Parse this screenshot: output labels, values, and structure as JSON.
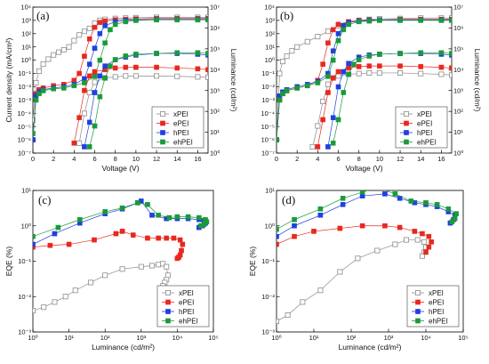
{
  "colors": {
    "xPEI": "#8c8c8c",
    "ePEI": "#e8281e",
    "hPEI": "#1f3fe0",
    "ehPEI": "#1a9a3a"
  },
  "legend": [
    "xPEI",
    "ePEI",
    "hPEI",
    "ehPEI"
  ],
  "chart_data": [
    {
      "panel": "(a)",
      "type": "line",
      "log_y": true,
      "log_y2": true,
      "xlabel": "Voltage (V)",
      "ylabel": "Current density (mA/cm²)",
      "y2label": "Luminance (cd/m²)",
      "xlim": [
        0,
        17
      ],
      "ylim": [
        1e-07,
        10000.0
      ],
      "y2lim": [
        1,
        10000000.0
      ],
      "xticks": [
        0,
        2,
        4,
        6,
        8,
        10,
        12,
        14,
        16
      ],
      "legend_position": "bottom-right",
      "current": [
        {
          "name": "xPEI",
          "x": [
            0,
            0.3,
            0.6,
            1,
            1.5,
            2,
            2.5,
            3,
            3.5,
            4,
            4.5,
            5,
            5.5,
            6,
            6.5,
            7,
            8,
            9,
            10,
            12,
            14,
            16,
            17
          ],
          "y": [
            3e-05,
            0.02,
            0.15,
            0.5,
            1.2,
            2.5,
            4,
            6,
            10,
            30,
            80,
            150,
            250,
            600,
            1000,
            1200,
            1400,
            1500,
            1600,
            1700,
            1700,
            1700,
            1700
          ]
        },
        {
          "name": "ePEI",
          "x": [
            0,
            0.3,
            0.6,
            1,
            2,
            3,
            4,
            4.5,
            5,
            5.5,
            6,
            6.5,
            7,
            8,
            9,
            10,
            12,
            14,
            16,
            17
          ],
          "y": [
            1e-06,
            0.003,
            0.006,
            0.008,
            0.012,
            0.015,
            0.03,
            0.1,
            2,
            40,
            300,
            700,
            900,
            1100,
            1200,
            1300,
            1400,
            1400,
            1400,
            1400
          ]
        },
        {
          "name": "hPEI",
          "x": [
            0,
            0.3,
            0.6,
            1,
            2,
            3,
            4,
            5,
            5.5,
            6,
            6.5,
            7,
            8,
            9,
            10,
            12,
            14,
            16,
            17
          ],
          "y": [
            1e-06,
            0.002,
            0.004,
            0.006,
            0.008,
            0.01,
            0.015,
            0.04,
            0.5,
            8,
            100,
            400,
            800,
            1000,
            1100,
            1200,
            1200,
            1200,
            1200
          ]
        },
        {
          "name": "ehPEI",
          "x": [
            0,
            0.3,
            0.6,
            1,
            2,
            3,
            4,
            5,
            6,
            6.5,
            7,
            7.5,
            8,
            9,
            10,
            12,
            14,
            16,
            17
          ],
          "y": [
            3e-06,
            0.001,
            0.003,
            0.005,
            0.007,
            0.008,
            0.012,
            0.02,
            0.06,
            1,
            20,
            200,
            500,
            800,
            1000,
            1100,
            1100,
            1100,
            1100
          ]
        }
      ],
      "luminance": [
        {
          "name": "xPEI",
          "x": [
            4.5,
            5,
            5.5,
            6,
            7,
            8,
            9,
            10,
            12,
            14,
            16,
            17
          ],
          "y": [
            3,
            80,
            800,
            2500,
            4000,
            4500,
            5000,
            5000,
            5000,
            4800,
            4500,
            4300
          ]
        },
        {
          "name": "ePEI",
          "x": [
            4,
            4.5,
            5,
            5.5,
            6,
            7,
            8,
            9,
            10,
            12,
            14,
            16,
            17
          ],
          "y": [
            3,
            50,
            1000,
            5000,
            8000,
            10000,
            12000,
            13000,
            13000,
            13000,
            12000,
            11000,
            10000
          ]
        },
        {
          "name": "hPEI",
          "x": [
            5,
            5.5,
            6,
            6.5,
            7,
            8,
            9,
            10,
            12,
            14,
            16,
            17
          ],
          "y": [
            2,
            30,
            800,
            5000,
            15000,
            30000,
            40000,
            50000,
            60000,
            60000,
            55000,
            50000
          ]
        },
        {
          "name": "ehPEI",
          "x": [
            5.5,
            6,
            6.5,
            7,
            7.5,
            8,
            9,
            10,
            12,
            14,
            16,
            17
          ],
          "y": [
            2,
            20,
            500,
            4000,
            15000,
            30000,
            45000,
            55000,
            60000,
            65000,
            65000,
            60000
          ]
        }
      ]
    },
    {
      "panel": "(b)",
      "type": "line",
      "log_y": true,
      "log_y2": true,
      "xlabel": "Voltage (V)",
      "ylabel": "",
      "y2label": "Luminance (cd/m²)",
      "xlim": [
        0,
        17
      ],
      "ylim": [
        1e-07,
        10000.0
      ],
      "y2lim": [
        1,
        10000000.0
      ],
      "xticks": [
        0,
        2,
        4,
        6,
        8,
        10,
        12,
        14,
        16
      ],
      "legend_position": "bottom-right",
      "current": [
        {
          "name": "xPEI",
          "x": [
            0,
            0.3,
            0.6,
            1,
            1.5,
            2,
            3,
            4,
            5,
            6,
            7,
            8,
            9,
            10,
            12,
            14,
            16,
            17
          ],
          "y": [
            1e-06,
            0.1,
            0.8,
            2,
            5,
            10,
            25,
            60,
            150,
            400,
            700,
            1000,
            1200,
            1300,
            1400,
            1500,
            1500,
            1500
          ]
        },
        {
          "name": "ePEI",
          "x": [
            0,
            0.3,
            0.6,
            1,
            2,
            3,
            4,
            4.5,
            5,
            5.5,
            6,
            7,
            8,
            9,
            10,
            12,
            14,
            16,
            17
          ],
          "y": [
            1e-06,
            0.001,
            0.003,
            0.005,
            0.008,
            0.012,
            0.03,
            0.5,
            20,
            200,
            500,
            800,
            1000,
            1100,
            1100,
            1200,
            1200,
            1200,
            1200
          ]
        },
        {
          "name": "hPEI",
          "x": [
            0,
            0.3,
            0.6,
            1,
            2,
            3,
            4,
            5,
            5.5,
            6,
            6.5,
            7,
            8,
            9,
            10,
            12,
            14,
            16,
            17
          ],
          "y": [
            1e-06,
            0.002,
            0.004,
            0.006,
            0.01,
            0.015,
            0.025,
            0.1,
            5,
            100,
            400,
            700,
            900,
            1000,
            1100,
            1100,
            1100,
            1100,
            1100
          ]
        },
        {
          "name": "ehPEI",
          "x": [
            0,
            0.3,
            0.6,
            1,
            2,
            3,
            4,
            5,
            5.5,
            6,
            6.5,
            7,
            8,
            9,
            10,
            12,
            14,
            16,
            17
          ],
          "y": [
            1e-06,
            0.001,
            0.003,
            0.005,
            0.008,
            0.012,
            0.02,
            0.06,
            1,
            30,
            200,
            500,
            800,
            900,
            1000,
            1000,
            1000,
            1000,
            1000
          ]
        }
      ],
      "luminance": [
        {
          "name": "xPEI",
          "x": [
            3.5,
            4,
            4.5,
            5,
            5.5,
            6,
            7,
            8,
            9,
            10,
            12,
            14,
            16,
            17
          ],
          "y": [
            2,
            20,
            300,
            2000,
            4000,
            5000,
            6000,
            6500,
            7000,
            7000,
            7000,
            6500,
            6000,
            5500
          ]
        },
        {
          "name": "ePEI",
          "x": [
            4,
            4.5,
            5,
            5.5,
            6,
            7,
            8,
            9,
            10,
            12,
            14,
            16,
            17
          ],
          "y": [
            2,
            40,
            800,
            4000,
            8000,
            12000,
            14000,
            15000,
            15000,
            15000,
            14000,
            13000,
            12000
          ]
        },
        {
          "name": "hPEI",
          "x": [
            5,
            5.5,
            6,
            6.5,
            7,
            8,
            9,
            10,
            12,
            14,
            16,
            17
          ],
          "y": [
            2,
            50,
            1500,
            8000,
            20000,
            40000,
            50000,
            55000,
            60000,
            60000,
            55000,
            50000
          ]
        },
        {
          "name": "ehPEI",
          "x": [
            5.5,
            6,
            6.5,
            7,
            7.5,
            8,
            9,
            10,
            12,
            14,
            16,
            17
          ],
          "y": [
            3,
            40,
            800,
            6000,
            18000,
            30000,
            45000,
            55000,
            60000,
            65000,
            65000,
            60000
          ]
        }
      ]
    },
    {
      "panel": "(c)",
      "type": "scatter",
      "log_x": true,
      "log_y": true,
      "xlabel": "Luminance (cd/m²)",
      "ylabel": "EQE (%)",
      "xlim": [
        1,
        100000
      ],
      "ylim": [
        0.001,
        10
      ],
      "legend_position": "bottom-right",
      "series": [
        {
          "name": "xPEI",
          "x": [
            1,
            2,
            4,
            8,
            15,
            40,
            100,
            300,
            1000,
            2000,
            3000,
            4000,
            5000,
            5500,
            5000,
            4500,
            4000
          ],
          "y": [
            0.004,
            0.005,
            0.007,
            0.01,
            0.015,
            0.025,
            0.04,
            0.06,
            0.07,
            0.075,
            0.08,
            0.085,
            0.07,
            0.04,
            0.03,
            0.025,
            0.02
          ]
        },
        {
          "name": "ePEI",
          "x": [
            1,
            3,
            10,
            50,
            200,
            300,
            600,
            1500,
            3000,
            5000,
            8000,
            12000,
            14000,
            13000,
            12000,
            11000,
            10000
          ],
          "y": [
            0.25,
            0.28,
            0.3,
            0.4,
            0.6,
            0.7,
            0.55,
            0.45,
            0.45,
            0.45,
            0.45,
            0.4,
            0.3,
            0.2,
            0.15,
            0.13,
            0.12
          ]
        },
        {
          "name": "hPEI",
          "x": [
            1,
            4,
            20,
            100,
            300,
            800,
            1000,
            2000,
            5000,
            10000,
            20000,
            40000,
            55000,
            60000,
            50000,
            40000
          ],
          "y": [
            0.3,
            0.6,
            1.2,
            2.2,
            3,
            4.5,
            5,
            2,
            1.6,
            1.6,
            1.6,
            1.5,
            1.4,
            1.2,
            1.0,
            0.9
          ]
        },
        {
          "name": "ehPEI",
          "x": [
            1,
            5,
            20,
            100,
            300,
            800,
            1500,
            3000,
            6000,
            10000,
            20000,
            40000,
            60000,
            65000,
            55000,
            45000
          ],
          "y": [
            0.5,
            0.9,
            1.5,
            2.5,
            3.2,
            4.5,
            4,
            2,
            1.7,
            1.8,
            1.8,
            1.7,
            1.5,
            1.3,
            1.1,
            1.0
          ]
        }
      ]
    },
    {
      "panel": "(d)",
      "type": "scatter",
      "log_x": true,
      "log_y": true,
      "xlabel": "Luminance (cd/m²)",
      "ylabel": "EQE (%)",
      "xlim": [
        1,
        100000
      ],
      "ylim": [
        0.001,
        10
      ],
      "legend_position": "bottom-right",
      "series": [
        {
          "name": "xPEI",
          "x": [
            1,
            2,
            5,
            15,
            50,
            150,
            500,
            1500,
            3000,
            6000,
            9000,
            10000,
            9000,
            8000
          ],
          "y": [
            0.002,
            0.003,
            0.007,
            0.015,
            0.05,
            0.12,
            0.2,
            0.3,
            0.4,
            0.4,
            0.35,
            0.25,
            0.18,
            0.14
          ]
        },
        {
          "name": "ePEI",
          "x": [
            1,
            3,
            10,
            50,
            200,
            800,
            2000,
            5000,
            8000,
            12000,
            14000,
            12000,
            10000
          ],
          "y": [
            0.3,
            0.5,
            0.7,
            0.85,
            1.0,
            1.0,
            0.9,
            0.7,
            0.6,
            0.5,
            0.35,
            0.25,
            0.18
          ]
        },
        {
          "name": "hPEI",
          "x": [
            1,
            3,
            15,
            60,
            200,
            800,
            2000,
            5000,
            10000,
            20000,
            40000,
            60000,
            55000,
            45000
          ],
          "y": [
            0.5,
            1,
            2,
            4,
            7,
            8,
            6,
            4.5,
            4,
            3.5,
            2.5,
            2,
            1.5,
            1.2
          ]
        },
        {
          "name": "ehPEI",
          "x": [
            1,
            3,
            15,
            60,
            200,
            500,
            1500,
            4000,
            10000,
            20000,
            40000,
            65000,
            60000,
            50000
          ],
          "y": [
            0.8,
            1.5,
            3,
            6,
            9,
            12,
            8,
            5,
            4.5,
            4,
            3,
            2.2,
            1.6,
            1.3
          ]
        }
      ]
    }
  ]
}
